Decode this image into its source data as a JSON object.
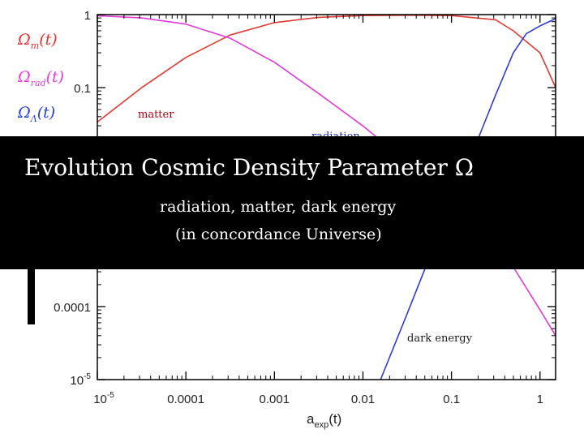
{
  "chart_data": {
    "type": "line",
    "title": "",
    "xlabel_main": "a",
    "xlabel_sub": "exp",
    "xlabel_tail": "(t)",
    "xscale": "log",
    "yscale": "log",
    "xlim": [
      1e-05,
      1.5
    ],
    "ylim": [
      1e-05,
      1
    ],
    "xticks": [
      {
        "value": 1e-05,
        "base": "10",
        "exp": "-5"
      },
      {
        "value": 0.0001,
        "label": "0.0001"
      },
      {
        "value": 0.001,
        "label": "0.001"
      },
      {
        "value": 0.01,
        "label": "0.01"
      },
      {
        "value": 0.1,
        "label": "0.1"
      },
      {
        "value": 1,
        "label": "1"
      }
    ],
    "yticks": [
      {
        "value": 1,
        "label": "1"
      },
      {
        "value": 0.1,
        "label": "0.1"
      },
      {
        "value": 0.0001,
        "label": "0.0001"
      },
      {
        "value": 1e-05,
        "base": "10",
        "exp": "-5"
      }
    ],
    "legend": [
      {
        "symbol": "Ω",
        "sub": "m",
        "tail": "(t)",
        "color": "#e8302e"
      },
      {
        "symbol": "Ω",
        "sub": "rad",
        "tail": "(t)",
        "color": "#e83bd9"
      },
      {
        "symbol": "Ω",
        "sub": "Λ",
        "tail": "(t)",
        "color": "#2b3fd6"
      }
    ],
    "series": [
      {
        "key": "matter",
        "color": "#e03a34",
        "x": [
          1e-05,
          3.16e-05,
          0.0001,
          0.000316,
          0.001,
          0.00316,
          0.01,
          0.0316,
          0.1,
          0.316,
          0.5,
          1,
          1.5
        ],
        "y": [
          0.0337,
          0.0995,
          0.259,
          0.525,
          0.777,
          0.917,
          0.97,
          0.98,
          0.97,
          0.85,
          0.6,
          0.3,
          0.1
        ]
      },
      {
        "key": "radiation",
        "color": "#e03ad8",
        "x": [
          1e-05,
          3.16e-05,
          0.0001,
          0.000316,
          0.001,
          0.00316,
          0.01,
          0.0316,
          0.1,
          0.316,
          1,
          1.5
        ],
        "y": [
          0.966,
          0.9,
          0.741,
          0.475,
          0.223,
          0.083,
          0.0298,
          0.0095,
          0.0029,
          0.00085,
          9e-05,
          4e-05
        ]
      },
      {
        "key": "dark_energy",
        "color": "#2f3dd2",
        "x": [
          0.0158,
          0.0316,
          0.1,
          0.2,
          0.316,
          0.5,
          0.7,
          1,
          1.5
        ],
        "y": [
          1e-05,
          8e-05,
          0.0027,
          0.02,
          0.08,
          0.3,
          0.55,
          0.7,
          0.88
        ]
      }
    ],
    "annotations": [
      {
        "text": "matter",
        "color": "#b0000e"
      },
      {
        "text": "radiation",
        "color": "#1a2cc0"
      },
      {
        "text": "dark energy",
        "color": "#1a1a1a"
      }
    ]
  },
  "banner": {
    "title": "Evolution Cosmic Density Parameter Ω",
    "subtitle_line1": "radiation, matter, dark energy",
    "subtitle_line2": "(in concordance Universe)"
  }
}
